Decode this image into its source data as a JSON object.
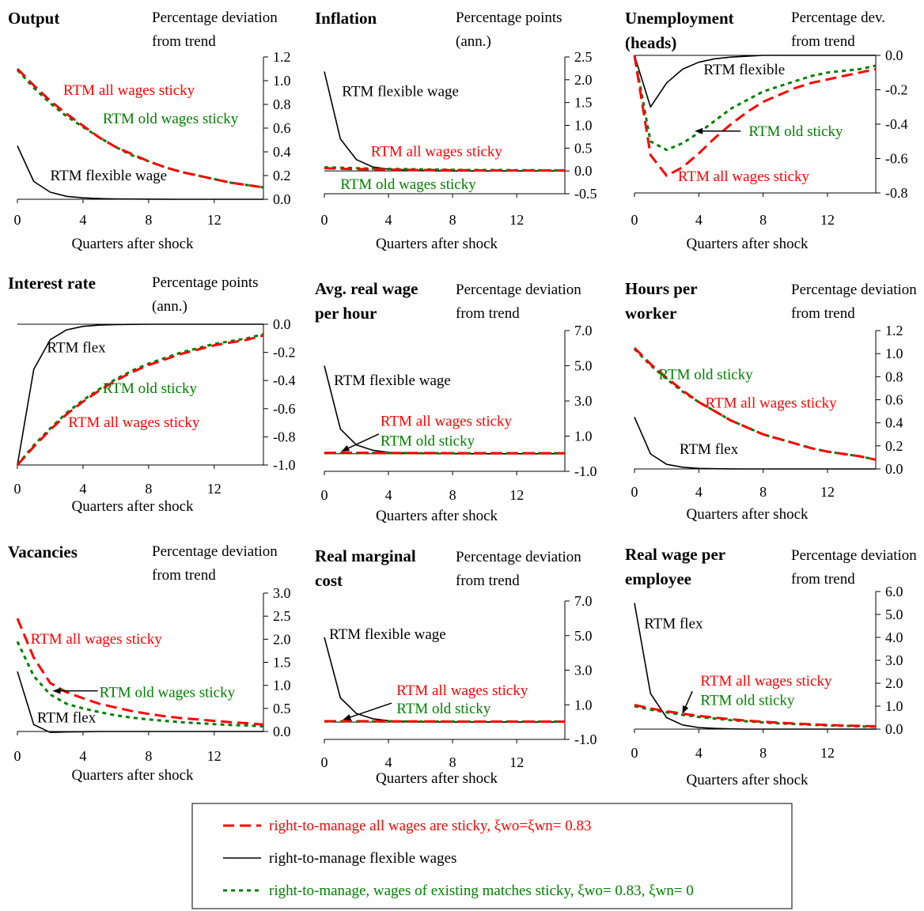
{
  "chart_data": [
    {
      "type": "line",
      "title": [
        "Output"
      ],
      "unit": [
        "Percentage deviation",
        "from trend"
      ],
      "xlabel": "Quarters after shock",
      "xlim": [
        0,
        15
      ],
      "xticks": [
        0,
        4,
        8,
        12
      ],
      "ylim": [
        0,
        1.2
      ],
      "yticks": [
        "0.0",
        "0.2",
        "0.4",
        "0.6",
        "0.8",
        "1.0",
        "1.2"
      ],
      "series": [
        {
          "key": "all",
          "values": [
            1.1,
            0.96,
            0.83,
            0.72,
            0.62,
            0.52,
            0.44,
            0.38,
            0.32,
            0.27,
            0.23,
            0.2,
            0.17,
            0.14,
            0.12,
            0.1
          ]
        },
        {
          "key": "old",
          "values": [
            1.09,
            0.94,
            0.81,
            0.7,
            0.61,
            0.52,
            0.44,
            0.37,
            0.32,
            0.27,
            0.23,
            0.2,
            0.17,
            0.14,
            0.12,
            0.1
          ]
        },
        {
          "key": "flex",
          "values": [
            0.45,
            0.15,
            0.06,
            0.025,
            0.012,
            0.006,
            0.003,
            0.002,
            0.001,
            0.0005,
            0,
            0,
            0,
            0,
            0,
            0
          ]
        }
      ],
      "annotations": [
        {
          "text": "RTM all wages sticky",
          "key": "all",
          "x": 2.8,
          "y": 0.88
        },
        {
          "text": "RTM old wages sticky",
          "key": "old",
          "x": 5.2,
          "y": 0.64
        },
        {
          "text": "RTM flexible wage",
          "key": "flex",
          "x": 2,
          "y": 0.16
        }
      ]
    },
    {
      "type": "line",
      "title": [
        "Inflation"
      ],
      "unit": [
        "Percentage points",
        "(ann.)"
      ],
      "xlabel": "Quarters after shock",
      "xlim": [
        0,
        15
      ],
      "xticks": [
        0,
        4,
        8,
        12
      ],
      "ylim": [
        -0.5,
        2.5
      ],
      "yticks": [
        "-0.5",
        "0.0",
        "0.5",
        "1.0",
        "1.5",
        "2.0",
        "2.5"
      ],
      "series": [
        {
          "key": "all",
          "values": [
            0.06,
            0.05,
            0.04,
            0.035,
            0.03,
            0.025,
            0.02,
            0.02,
            0.015,
            0.015,
            0.01,
            0.01,
            0.01,
            0.01,
            0.01,
            0.01
          ]
        },
        {
          "key": "old",
          "values": [
            0.08,
            0.07,
            0.06,
            0.05,
            0.045,
            0.04,
            0.035,
            0.03,
            0.025,
            0.02,
            0.02,
            0.02,
            0.015,
            0.015,
            0.01,
            0.01
          ]
        },
        {
          "key": "flex",
          "values": [
            2.18,
            0.7,
            0.25,
            0.09,
            0.04,
            0.02,
            0.01,
            0.005,
            0,
            0,
            0,
            0,
            0,
            0,
            0,
            0
          ]
        }
      ],
      "annotations": [
        {
          "text": "RTM flexible wage",
          "key": "flex",
          "x": 1.1,
          "y": 1.64
        },
        {
          "text": "RTM all wages sticky",
          "key": "all",
          "x": 2.9,
          "y": 0.32
        },
        {
          "text": "RTM old wages sticky",
          "key": "old",
          "x": 1,
          "y": -0.4
        }
      ]
    },
    {
      "type": "line",
      "title": [
        "Unemployment",
        "(heads)"
      ],
      "unit": [
        "Percentage dev.",
        "from trend"
      ],
      "xlabel": "Quarters after shock",
      "xlim": [
        0,
        15
      ],
      "xticks": [
        0,
        4,
        8,
        12
      ],
      "ylim": [
        -0.8,
        0
      ],
      "yticks": [
        "-0.8",
        "-0.6",
        "-0.4",
        "-0.2",
        "0.0"
      ],
      "series": [
        {
          "key": "all",
          "values": [
            0,
            -0.58,
            -0.7,
            -0.65,
            -0.57,
            -0.48,
            -0.4,
            -0.33,
            -0.27,
            -0.23,
            -0.19,
            -0.16,
            -0.14,
            -0.12,
            -0.1,
            -0.08
          ]
        },
        {
          "key": "old",
          "values": [
            0,
            -0.5,
            -0.55,
            -0.51,
            -0.45,
            -0.38,
            -0.31,
            -0.26,
            -0.21,
            -0.18,
            -0.15,
            -0.12,
            -0.1,
            -0.09,
            -0.08,
            -0.06
          ]
        },
        {
          "key": "flex",
          "values": [
            0,
            -0.3,
            -0.16,
            -0.08,
            -0.04,
            -0.02,
            -0.01,
            -0.005,
            0,
            0,
            0,
            0,
            0,
            0,
            0,
            0
          ]
        }
      ],
      "annotations": [
        {
          "text": "RTM flexible",
          "key": "flex",
          "x": 4.3,
          "y": -0.11
        },
        {
          "text": "RTM old sticky",
          "key": "old",
          "x": 7.1,
          "y": -0.47
        },
        {
          "text": "RTM all wages sticky",
          "key": "all",
          "x": 2.7,
          "y": -0.73
        }
      ],
      "arrows": [
        {
          "from": [
            6.6,
            -0.44
          ],
          "to": [
            3.8,
            -0.44
          ]
        }
      ]
    },
    {
      "type": "line",
      "title": [
        "Interest rate"
      ],
      "unit": [
        "Percentage points",
        "(ann.)"
      ],
      "xlabel": "Quarters after shock",
      "xlim": [
        0,
        15
      ],
      "xticks": [
        0,
        4,
        8,
        12
      ],
      "ylim": [
        -1.0,
        0
      ],
      "yticks": [
        "-1.0",
        "-0.8",
        "-0.6",
        "-0.4",
        "-0.2",
        "0.0"
      ],
      "series": [
        {
          "key": "all",
          "values": [
            -1.0,
            -0.87,
            -0.75,
            -0.64,
            -0.55,
            -0.47,
            -0.4,
            -0.34,
            -0.29,
            -0.25,
            -0.21,
            -0.18,
            -0.15,
            -0.13,
            -0.11,
            -0.08
          ]
        },
        {
          "key": "old",
          "values": [
            -1.0,
            -0.86,
            -0.74,
            -0.63,
            -0.54,
            -0.46,
            -0.39,
            -0.33,
            -0.28,
            -0.24,
            -0.2,
            -0.17,
            -0.14,
            -0.12,
            -0.1,
            -0.07
          ]
        },
        {
          "key": "flex",
          "values": [
            -1.0,
            -0.32,
            -0.11,
            -0.04,
            -0.015,
            -0.006,
            -0.002,
            -0.001,
            0,
            0,
            0,
            0,
            0,
            0,
            0,
            0
          ]
        }
      ],
      "annotations": [
        {
          "text": "RTM flex",
          "key": "flex",
          "x": 1.8,
          "y": -0.2
        },
        {
          "text": "RTM old sticky",
          "key": "old",
          "x": 5.2,
          "y": -0.49
        },
        {
          "text": "RTM all wages sticky",
          "key": "all",
          "x": 3.1,
          "y": -0.73
        }
      ]
    },
    {
      "type": "line",
      "title": [
        "Avg. real wage",
        "per hour"
      ],
      "unit": [
        "Percentage deviation",
        "from trend"
      ],
      "xlabel": "Quarters after shock",
      "xlim": [
        0,
        15
      ],
      "xticks": [
        0,
        4,
        8,
        12
      ],
      "ylim": [
        -1.0,
        7.0
      ],
      "yticks": [
        "-1.0",
        "1.0",
        "3.0",
        "5.0",
        "7.0"
      ],
      "series": [
        {
          "key": "all",
          "values": [
            0.05,
            0.05,
            0.05,
            0.05,
            0.04,
            0.04,
            0.04,
            0.04,
            0.03,
            0.03,
            0.03,
            0.03,
            0.03,
            0.03,
            0.03,
            0.03
          ]
        },
        {
          "key": "old",
          "values": [
            0.04,
            0.04,
            0.04,
            0.04,
            0.04,
            0.04,
            0.03,
            0.03,
            0.03,
            0.03,
            0.03,
            0.03,
            0.03,
            0.03,
            0.03,
            0.03
          ]
        },
        {
          "key": "flex",
          "values": [
            5.0,
            1.4,
            0.5,
            0.2,
            0.08,
            0.04,
            0.02,
            0.01,
            0,
            0,
            0,
            0,
            0,
            0,
            0,
            0
          ]
        }
      ],
      "annotations": [
        {
          "text": "RTM flexible wage",
          "key": "flex",
          "x": 0.6,
          "y": 3.9
        },
        {
          "text": "RTM all wages sticky",
          "key": "all",
          "x": 3.5,
          "y": 1.58
        },
        {
          "text": "RTM old sticky",
          "key": "old",
          "x": 3.5,
          "y": 0.45
        }
      ],
      "arrows": [
        {
          "from": [
            3.4,
            1.12
          ],
          "to": [
            1.1,
            0.15
          ]
        }
      ]
    },
    {
      "type": "line",
      "title": [
        "Hours per",
        "worker"
      ],
      "unit": [
        "Percentage deviation",
        "from trend"
      ],
      "xlabel": "Quarters after shock",
      "xlim": [
        0,
        15
      ],
      "xticks": [
        0,
        4,
        8,
        12
      ],
      "ylim": [
        0,
        1.2
      ],
      "yticks": [
        "0.0",
        "0.2",
        "0.4",
        "0.6",
        "0.8",
        "1.0",
        "1.2"
      ],
      "series": [
        {
          "key": "all",
          "values": [
            1.05,
            0.91,
            0.79,
            0.68,
            0.58,
            0.5,
            0.42,
            0.36,
            0.3,
            0.26,
            0.22,
            0.18,
            0.15,
            0.13,
            0.11,
            0.08
          ]
        },
        {
          "key": "old",
          "values": [
            1.04,
            0.9,
            0.78,
            0.67,
            0.58,
            0.5,
            0.42,
            0.36,
            0.3,
            0.26,
            0.22,
            0.18,
            0.15,
            0.13,
            0.11,
            0.08
          ]
        },
        {
          "key": "flex",
          "values": [
            0.45,
            0.13,
            0.04,
            0.015,
            0.005,
            0.002,
            0.001,
            0,
            0,
            0,
            0,
            0,
            0,
            0,
            0,
            0
          ]
        }
      ],
      "annotations": [
        {
          "text": "RTM old sticky",
          "key": "old",
          "x": 1.5,
          "y": 0.78
        },
        {
          "text": "RTM all wages sticky",
          "key": "all",
          "x": 4.4,
          "y": 0.53
        },
        {
          "text": "RTM flex",
          "key": "flex",
          "x": 2.8,
          "y": 0.13
        }
      ]
    },
    {
      "type": "line",
      "title": [
        "Vacancies"
      ],
      "unit": [
        "Percentage deviation",
        "from trend"
      ],
      "xlabel": "Quarters after shock",
      "xlim": [
        0,
        15
      ],
      "xticks": [
        0,
        4,
        8,
        12
      ],
      "ylim": [
        0,
        3.0
      ],
      "yticks": [
        "0.0",
        "0.5",
        "1.0",
        "1.5",
        "2.0",
        "2.5",
        "3.0"
      ],
      "series": [
        {
          "key": "all",
          "values": [
            2.45,
            1.6,
            1.05,
            0.85,
            0.72,
            0.6,
            0.52,
            0.44,
            0.38,
            0.33,
            0.29,
            0.26,
            0.23,
            0.2,
            0.18,
            0.15
          ]
        },
        {
          "key": "old",
          "values": [
            1.95,
            1.2,
            0.8,
            0.6,
            0.5,
            0.42,
            0.35,
            0.3,
            0.26,
            0.23,
            0.2,
            0.18,
            0.16,
            0.14,
            0.13,
            0.11
          ]
        },
        {
          "key": "flex",
          "values": [
            1.3,
            0.15,
            -0.02,
            -0.01,
            -0.005,
            0,
            0,
            0,
            0,
            0,
            0,
            0,
            0,
            0,
            0,
            0
          ]
        }
      ],
      "annotations": [
        {
          "text": "RTM all wages sticky",
          "key": "all",
          "x": 0.8,
          "y": 1.9
        },
        {
          "text": "RTM old wages sticky",
          "key": "old",
          "x": 5,
          "y": 0.75
        },
        {
          "text": "RTM flex",
          "key": "flex",
          "x": 1.2,
          "y": 0.2
        }
      ],
      "arrows": [
        {
          "from": [
            4.9,
            0.88
          ],
          "to": [
            2.2,
            0.88
          ]
        }
      ]
    },
    {
      "type": "line",
      "title": [
        "Real marginal",
        "cost"
      ],
      "unit": [
        "Percentage deviation",
        "from trend"
      ],
      "xlabel": "Quarters after shock",
      "xlim": [
        0,
        15
      ],
      "xticks": [
        0,
        4,
        8,
        12
      ],
      "ylim": [
        -1.0,
        7.0
      ],
      "yticks": [
        "-1.0",
        "1.0",
        "3.0",
        "5.0",
        "7.0"
      ],
      "series": [
        {
          "key": "all",
          "values": [
            0.05,
            0.05,
            0.05,
            0.05,
            0.04,
            0.04,
            0.04,
            0.04,
            0.03,
            0.03,
            0.03,
            0.03,
            0.03,
            0.03,
            0.03,
            0.03
          ]
        },
        {
          "key": "old",
          "values": [
            0.04,
            0.04,
            0.04,
            0.04,
            0.04,
            0.04,
            0.03,
            0.03,
            0.03,
            0.03,
            0.03,
            0.03,
            0.03,
            0.03,
            0.03,
            0.03
          ]
        },
        {
          "key": "flex",
          "values": [
            4.9,
            1.4,
            0.5,
            0.2,
            0.08,
            0.04,
            0.02,
            0.01,
            0,
            0,
            0,
            0,
            0,
            0,
            0,
            0
          ]
        }
      ],
      "annotations": [
        {
          "text": "RTM flexible wage",
          "key": "flex",
          "x": 0.3,
          "y": 4.8
        },
        {
          "text": "RTM all wages sticky",
          "key": "all",
          "x": 4.5,
          "y": 1.55
        },
        {
          "text": "RTM old sticky",
          "key": "old",
          "x": 4.5,
          "y": 0.5
        }
      ],
      "arrows": [
        {
          "from": [
            4.2,
            1.1
          ],
          "to": [
            1.2,
            0.15
          ]
        }
      ]
    },
    {
      "type": "line",
      "title": [
        "Real wage per",
        "employee"
      ],
      "unit": [
        "Percentage deviation",
        "from trend"
      ],
      "xlabel": "Quarters after shock",
      "xlim": [
        0,
        15
      ],
      "xticks": [
        0,
        4,
        8,
        12
      ],
      "ylim": [
        0,
        6.0
      ],
      "yticks": [
        "0.0",
        "1.0",
        "2.0",
        "3.0",
        "4.0",
        "5.0",
        "6.0"
      ],
      "series": [
        {
          "key": "all",
          "values": [
            1.05,
            0.9,
            0.78,
            0.67,
            0.58,
            0.5,
            0.43,
            0.37,
            0.32,
            0.28,
            0.24,
            0.21,
            0.18,
            0.16,
            0.14,
            0.12
          ]
        },
        {
          "key": "old",
          "values": [
            1.0,
            0.85,
            0.73,
            0.62,
            0.53,
            0.46,
            0.39,
            0.34,
            0.29,
            0.25,
            0.22,
            0.19,
            0.16,
            0.14,
            0.12,
            0.1
          ]
        },
        {
          "key": "flex",
          "values": [
            5.5,
            1.55,
            0.5,
            0.18,
            0.07,
            0.03,
            0.01,
            0,
            0,
            0,
            0,
            0,
            0,
            0,
            0,
            0
          ]
        }
      ],
      "annotations": [
        {
          "text": "RTM flex",
          "key": "flex",
          "x": 0.6,
          "y": 4.4
        },
        {
          "text": "RTM all wages sticky",
          "key": "all",
          "x": 4.1,
          "y": 1.9
        },
        {
          "text": "RTM old sticky",
          "key": "old",
          "x": 4.1,
          "y": 1.05
        }
      ],
      "arrows": [
        {
          "from": [
            3.6,
            1.65
          ],
          "to": [
            3.0,
            0.7
          ]
        }
      ]
    }
  ],
  "legend": [
    {
      "key": "all",
      "label": "right-to-manage all wages are sticky, ξwo=ξwn= 0.83"
    },
    {
      "key": "flex",
      "label": "right-to-manage flexible wages"
    },
    {
      "key": "old",
      "label": "right-to-manage, wages of existing matches sticky, ξwo= 0.83, ξwn= 0"
    }
  ],
  "styles": {
    "all": {
      "color": "#ff0000",
      "dash": "14 7",
      "width": 3
    },
    "old": {
      "color": "#008000",
      "dash": "5 5",
      "width": 3
    },
    "flex": {
      "color": "#000000",
      "dash": "",
      "width": 1.6
    }
  }
}
